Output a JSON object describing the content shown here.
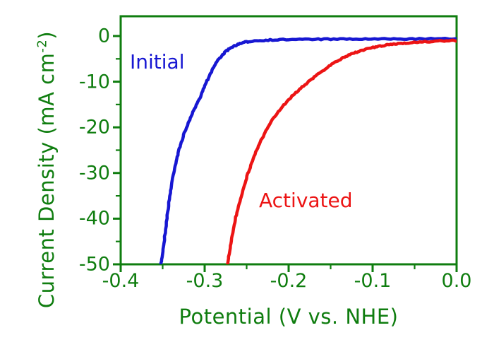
{
  "figure": {
    "background": "#ffffff",
    "axis_color": "#0f7d0f",
    "ylabel_prefix": "Current Density (mA cm",
    "ylabel_sup": "-2",
    "ylabel_suffix": ")"
  },
  "chart_data": {
    "type": "line",
    "title": "",
    "xlabel": "Potential (V vs. NHE)",
    "ylabel": "Current Density (mA cm^-2)",
    "xlim": [
      -0.4,
      0.0
    ],
    "ylim": [
      -50,
      4.33
    ],
    "grid": false,
    "legend": "none (curves labeled by inline text annotations)",
    "x_ticks": [
      -0.4,
      -0.3,
      -0.2,
      -0.1,
      0.0
    ],
    "x_tick_labels": [
      "-0.4",
      "-0.3",
      "-0.2",
      "-0.1",
      "0.0"
    ],
    "x_minor_ticks": [
      -0.35,
      -0.25,
      -0.15,
      -0.05
    ],
    "y_ticks": [
      0,
      -10,
      -20,
      -30,
      -40,
      -50
    ],
    "y_tick_labels": [
      "0",
      "-10",
      "-20",
      "-30",
      "-40",
      "-50"
    ],
    "y_minor_ticks": [
      -5,
      -15,
      -25,
      -35,
      -45
    ],
    "annotations": [
      {
        "text": "Initial",
        "color": "#1717d2"
      },
      {
        "text": "Activated",
        "color": "#ec1414"
      }
    ],
    "series": [
      {
        "name": "Initial",
        "color": "#1717d2",
        "points": [
          [
            -0.352,
            -50
          ],
          [
            -0.349,
            -46
          ],
          [
            -0.345,
            -40
          ],
          [
            -0.341,
            -34.5
          ],
          [
            -0.337,
            -30
          ],
          [
            -0.332,
            -26
          ],
          [
            -0.327,
            -22.8
          ],
          [
            -0.321,
            -19.8
          ],
          [
            -0.314,
            -16.7
          ],
          [
            -0.306,
            -13.6
          ],
          [
            -0.299,
            -10.5
          ],
          [
            -0.292,
            -7.8
          ],
          [
            -0.285,
            -5.5
          ],
          [
            -0.277,
            -3.8
          ],
          [
            -0.268,
            -2.5
          ],
          [
            -0.258,
            -1.7
          ],
          [
            -0.247,
            -1.2
          ],
          [
            -0.232,
            -0.95
          ],
          [
            -0.21,
            -0.8
          ],
          [
            -0.18,
            -0.72
          ],
          [
            -0.15,
            -0.7
          ],
          [
            -0.12,
            -0.68
          ],
          [
            -0.09,
            -0.66
          ],
          [
            -0.06,
            -0.65
          ],
          [
            -0.03,
            -0.63
          ],
          [
            0.0,
            -0.62
          ]
        ]
      },
      {
        "name": "Activated",
        "color": "#ec1414",
        "points": [
          [
            -0.273,
            -50
          ],
          [
            -0.269,
            -46
          ],
          [
            -0.265,
            -41.5
          ],
          [
            -0.259,
            -36.8
          ],
          [
            -0.252,
            -32.2
          ],
          [
            -0.245,
            -28.3
          ],
          [
            -0.237,
            -24.5
          ],
          [
            -0.228,
            -21.2
          ],
          [
            -0.218,
            -18.0
          ],
          [
            -0.207,
            -15.4
          ],
          [
            -0.196,
            -13.2
          ],
          [
            -0.184,
            -11.2
          ],
          [
            -0.171,
            -9.2
          ],
          [
            -0.158,
            -7.4
          ],
          [
            -0.145,
            -5.8
          ],
          [
            -0.132,
            -4.5
          ],
          [
            -0.119,
            -3.5
          ],
          [
            -0.106,
            -2.8
          ],
          [
            -0.093,
            -2.3
          ],
          [
            -0.08,
            -1.9
          ],
          [
            -0.066,
            -1.6
          ],
          [
            -0.051,
            -1.4
          ],
          [
            -0.036,
            -1.25
          ],
          [
            -0.02,
            -1.1
          ],
          [
            0.0,
            -1.0
          ]
        ]
      }
    ]
  }
}
